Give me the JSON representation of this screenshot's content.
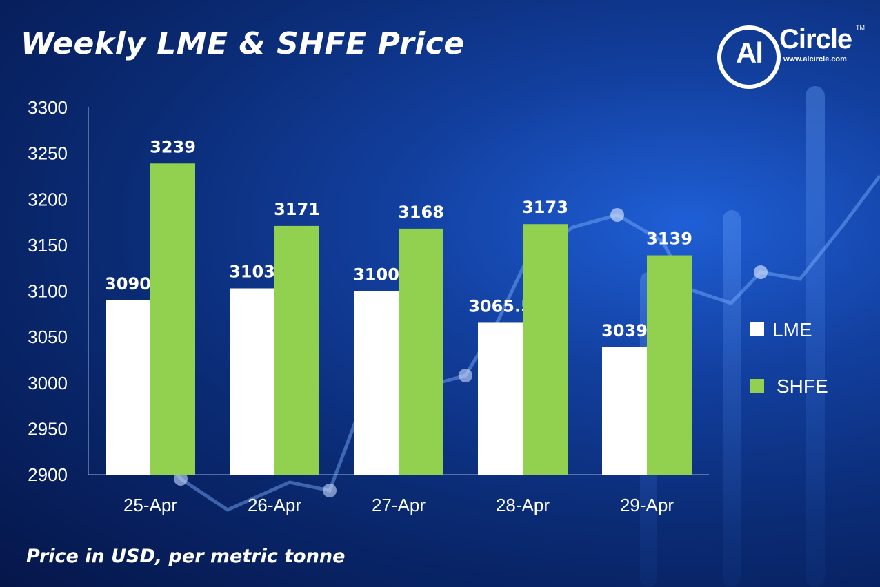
{
  "title": "Weekly LME & SHFE Price",
  "footnote": "Price in USD, per metric tonne",
  "logo": {
    "mark": "Al",
    "name": "Circle",
    "trademark": "TM",
    "url": "www.alcircle.com"
  },
  "colors": {
    "LME": "#ffffff",
    "SHFE": "#92d050",
    "axis": "#9fb3d9"
  },
  "chart_data": {
    "type": "bar",
    "categories": [
      "25-Apr",
      "26-Apr",
      "27-Apr",
      "28-Apr",
      "29-Apr"
    ],
    "series": [
      {
        "name": "LME",
        "values": [
          3090,
          3103,
          3100,
          3065.5,
          3039
        ],
        "color": "#ffffff"
      },
      {
        "name": "SHFE",
        "values": [
          3239,
          3171,
          3168,
          3173,
          3139
        ],
        "color": "#92d050"
      }
    ],
    "data_labels": [
      [
        "3090",
        "3103",
        "3100",
        "3065.5",
        "3039"
      ],
      [
        "3239",
        "3171",
        "3168",
        "3173",
        "3139"
      ]
    ],
    "ylim": [
      2900,
      3300
    ],
    "yticks": [
      2900,
      2950,
      3000,
      3050,
      3100,
      3150,
      3200,
      3250,
      3300
    ],
    "grid": false,
    "legend_position": "right",
    "xlabel": "",
    "ylabel": ""
  }
}
